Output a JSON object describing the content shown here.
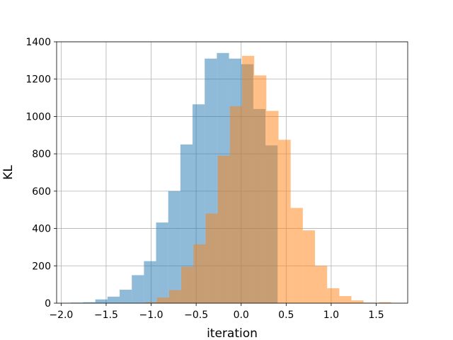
{
  "chart_data": {
    "type": "bar",
    "xlabel": "iteration",
    "ylabel": "KL",
    "xlim": [
      -2.05,
      1.85
    ],
    "ylim": [
      0,
      1400
    ],
    "grid": true,
    "xticks": [
      -2.0,
      -1.5,
      -1.0,
      -0.5,
      0.0,
      0.5,
      1.0,
      1.5
    ],
    "xtick_labels": [
      "−2.0",
      "−1.5",
      "−1.0",
      "−0.5",
      "0.0",
      "0.5",
      "1.0",
      "1.5"
    ],
    "yticks": [
      0,
      200,
      400,
      600,
      800,
      1000,
      1200,
      1400
    ],
    "ytick_labels": [
      "0",
      "200",
      "400",
      "600",
      "800",
      "1000",
      "1200",
      "1400"
    ],
    "series": [
      {
        "color": "#1f77b4",
        "opacity": 0.5,
        "bin_edges": [
          -1.89,
          -1.755,
          -1.62,
          -1.485,
          -1.35,
          -1.215,
          -1.08,
          -0.945,
          -0.81,
          -0.675,
          -0.54,
          -0.405,
          -0.27,
          -0.135,
          0.0,
          0.135,
          0.27,
          0.405
        ],
        "counts": [
          3,
          5,
          20,
          35,
          72,
          150,
          225,
          432,
          600,
          850,
          1065,
          1310,
          1340,
          1310,
          1280,
          1040,
          845
        ]
      },
      {
        "color": "#ff7f0e",
        "opacity": 0.5,
        "bin_edges": [
          -1.07,
          -0.935,
          -0.8,
          -0.665,
          -0.53,
          -0.395,
          -0.26,
          -0.125,
          0.01,
          0.145,
          0.28,
          0.415,
          0.55,
          0.685,
          0.82,
          0.955,
          1.09,
          1.225,
          1.36,
          1.495,
          1.63
        ],
        "counts": [
          5,
          30,
          70,
          195,
          315,
          480,
          790,
          1055,
          1325,
          1220,
          1030,
          875,
          510,
          390,
          200,
          80,
          38,
          15,
          3,
          0
        ]
      },
      {
        "color": "#ff7f0e",
        "opacity": 0.5,
        "bin_edges": [
          1.53,
          1.665
        ],
        "counts": [
          5
        ]
      }
    ]
  }
}
